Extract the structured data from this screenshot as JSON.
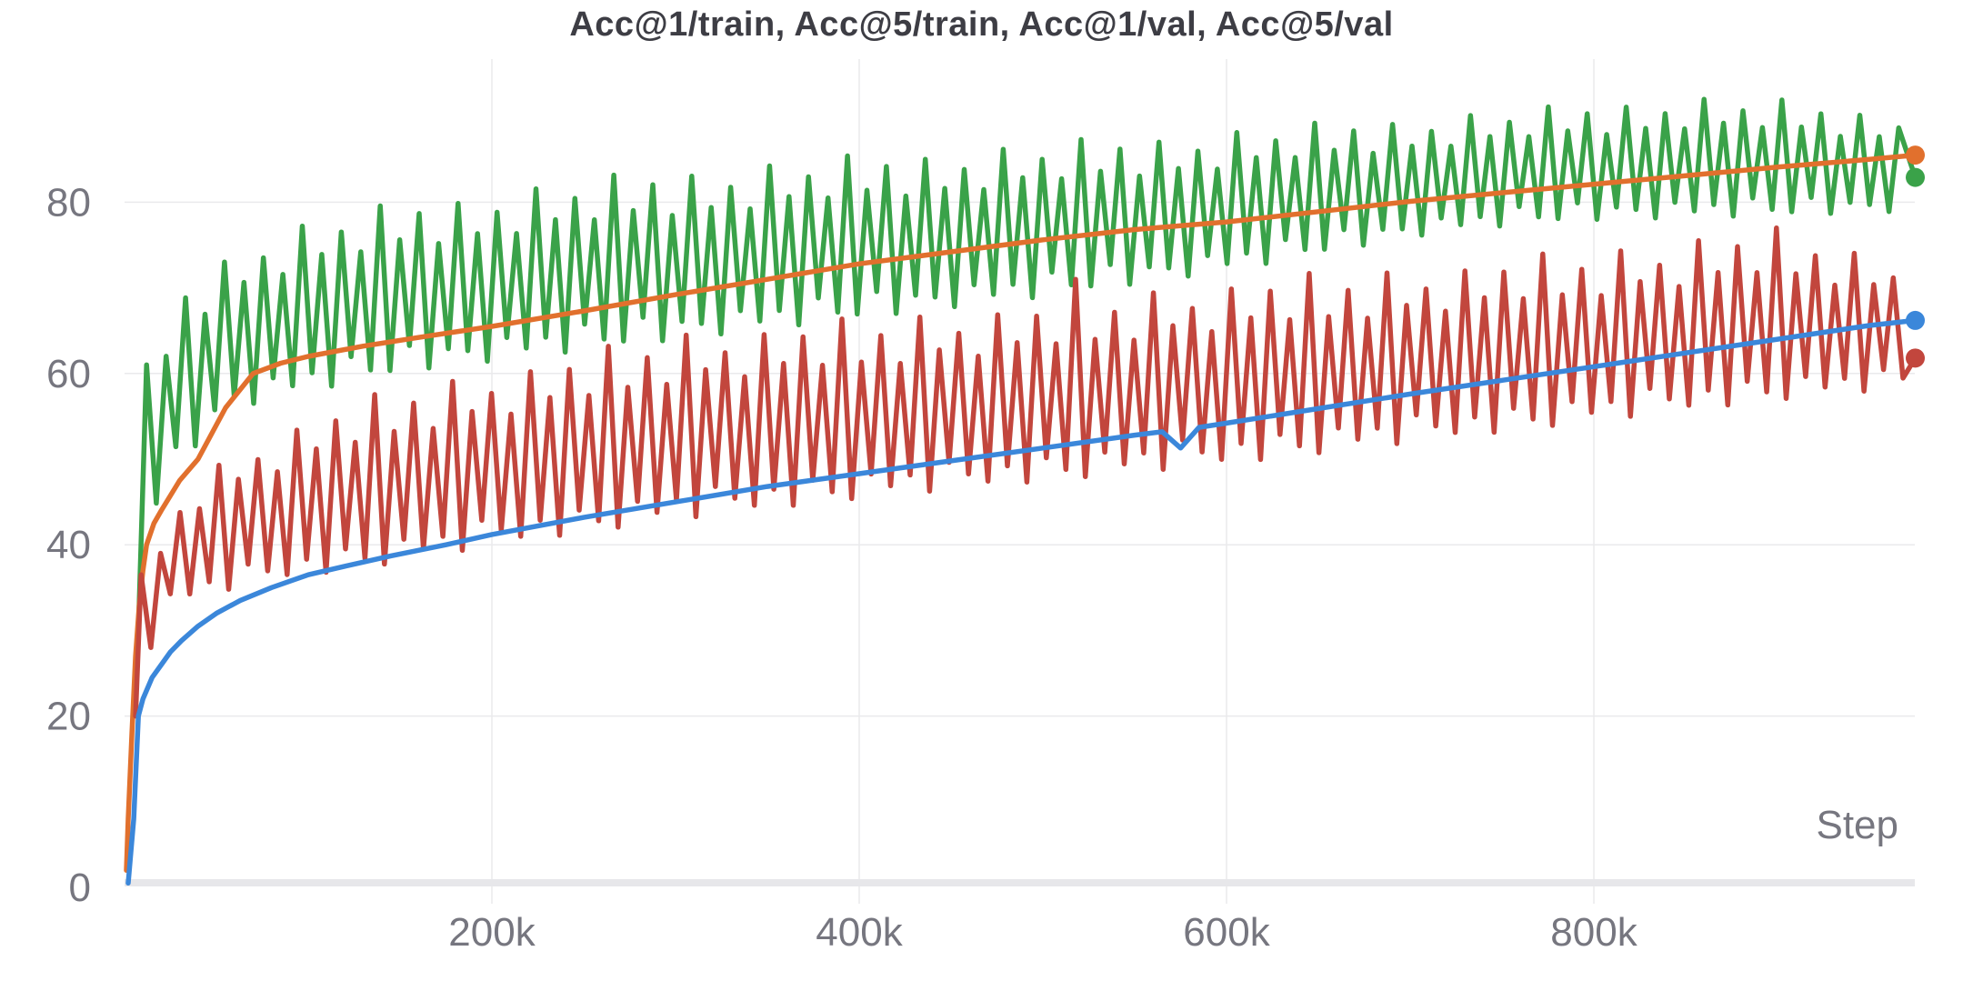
{
  "chart_data": {
    "type": "line",
    "title": "Acc@1/train, Acc@5/train, Acc@1/val, Acc@5/val",
    "xlabel": "Step",
    "x_unit": "steps",
    "x_range": [
      0,
      980000
    ],
    "ylim": [
      0,
      97
    ],
    "grid": true,
    "legend_position": "none",
    "x_ticks": [
      {
        "v": 200,
        "label": "200k"
      },
      {
        "v": 400,
        "label": "400k"
      },
      {
        "v": 600,
        "label": "600k"
      },
      {
        "v": 800,
        "label": "800k"
      }
    ],
    "y_ticks": [
      {
        "v": 0,
        "label": "0"
      },
      {
        "v": 20,
        "label": "20"
      },
      {
        "v": 40,
        "label": "40"
      },
      {
        "v": 60,
        "label": "60"
      },
      {
        "v": 80,
        "label": "80"
      }
    ],
    "colors": {
      "acc5_val": "#e1702d",
      "acc1_val": "#3b87da",
      "acc5_train": "#3aa249",
      "acc1_train": "#c2463d",
      "grid": "#eaeaec",
      "baseline": "#e7e7ea",
      "tick_text": "#76767f",
      "title_text": "#3d3d44"
    },
    "series": [
      {
        "name": "Acc@5/train",
        "color": "#3aa249",
        "kind": "jagged",
        "note": "noisy per-step training top-5 accuracy, oscillates between envelopes",
        "start_k": 7.5,
        "start_v": 30,
        "first_peak_k": 12,
        "half_period_k": 5.3,
        "upper_x": [
          10,
          30,
          60,
          100,
          150,
          200,
          300,
          400,
          500,
          600,
          700,
          800,
          850,
          900,
          975
        ],
        "upper_y": [
          60,
          70,
          75,
          78,
          80,
          81.5,
          84,
          85.5,
          87,
          88.5,
          90,
          91.5,
          92.5,
          92,
          90
        ],
        "lower_x": [
          7.5,
          10,
          20,
          40,
          60,
          100,
          160,
          200,
          300,
          400,
          500,
          600,
          650,
          700,
          760,
          800,
          900,
          975
        ],
        "lower_y": [
          30,
          40,
          46,
          52,
          56,
          58,
          60.5,
          61.5,
          64,
          66.5,
          69,
          72,
          74,
          76,
          77.5,
          78,
          78.5,
          79
        ],
        "peak_pattern": [
          1,
          0.6,
          0.85,
          0.5,
          0.9,
          0.55,
          0.75,
          0.5,
          0.95,
          0.6,
          0.8,
          0.55
        ],
        "trough_pattern": [
          0.95,
          0.7,
          1,
          0.8,
          0.85,
          1,
          0.75,
          0.9,
          0.8,
          1,
          0.7,
          0.9
        ],
        "spikes": [],
        "end_step_k": 975,
        "end_value": 82.9,
        "end_dot": true
      },
      {
        "name": "Acc@5/val",
        "color": "#e1702d",
        "kind": "smooth",
        "x_k": [
          1,
          2,
          4,
          6,
          8,
          10,
          12,
          16,
          20,
          30,
          40,
          55,
          70,
          85,
          100,
          130,
          160,
          200,
          250,
          300,
          350,
          400,
          450,
          500,
          550,
          600,
          650,
          700,
          750,
          800,
          850,
          900,
          950,
          975
        ],
        "y": [
          2,
          8,
          18,
          27,
          33,
          37,
          40,
          42.5,
          44,
          47.5,
          50,
          56,
          60,
          61.2,
          62,
          63.2,
          64.2,
          65.5,
          67.3,
          69.2,
          71,
          72.8,
          74.2,
          75.6,
          76.8,
          77.7,
          78.9,
          80.1,
          81.1,
          82.1,
          83.1,
          84.1,
          85,
          85.5
        ],
        "end_step_k": 975,
        "end_value": 85.5,
        "end_dot": true
      },
      {
        "name": "Acc@1/train",
        "color": "#c2463d",
        "kind": "jagged",
        "note": "noisy per-step training top-1 accuracy, oscillates between envelopes",
        "start_k": 6,
        "start_v": 20,
        "first_peak_k": 9,
        "half_period_k": 5.3,
        "upper_x": [
          8,
          20,
          40,
          60,
          100,
          150,
          200,
          250,
          300,
          400,
          500,
          600,
          700,
          800,
          900,
          975
        ],
        "upper_y": [
          36,
          42,
          48,
          51,
          55,
          58.5,
          60.5,
          62.5,
          65,
          66.5,
          68.5,
          71,
          72.5,
          74.5,
          77,
          72.5
        ],
        "lower_x": [
          6,
          10,
          25,
          60,
          100,
          150,
          200,
          300,
          400,
          500,
          600,
          700,
          800,
          900,
          975
        ],
        "lower_y": [
          20,
          26,
          33,
          35,
          36.5,
          38,
          40,
          43,
          45.5,
          47.5,
          49.5,
          52,
          54.5,
          57,
          58.5
        ],
        "peak_pattern": [
          1,
          0.55,
          0.8,
          0.5,
          0.95,
          0.6,
          0.75,
          0.5,
          0.9,
          0.6,
          0.85,
          0.55
        ],
        "trough_pattern": [
          1,
          0.75,
          0.9,
          0.8,
          1,
          0.7,
          0.85,
          0.95,
          0.8,
          1,
          0.75,
          0.9
        ],
        "spikes": [
          [
            520,
            71
          ],
          [
            855,
            75.5
          ],
          [
            914,
            79.7
          ]
        ],
        "end_step_k": 975,
        "end_value": 61.8,
        "end_dot": true
      },
      {
        "name": "Acc@1/val",
        "color": "#3b87da",
        "kind": "smooth",
        "x_k": [
          2,
          5,
          7.5,
          10,
          15,
          20,
          25,
          31,
          40,
          50,
          63,
          80,
          100,
          120,
          145,
          175,
          200,
          250,
          300,
          350,
          400,
          450,
          500,
          550,
          565,
          575,
          585,
          600,
          650,
          700,
          750,
          800,
          850,
          900,
          950,
          975
        ],
        "y": [
          0.5,
          8,
          20,
          22,
          24.5,
          26,
          27.5,
          28.8,
          30.5,
          32,
          33.5,
          35,
          36.5,
          37.5,
          38.7,
          40,
          41.2,
          43.2,
          45,
          46.8,
          48.3,
          49.8,
          51.3,
          52.8,
          53.2,
          51.3,
          53.7,
          54.2,
          55.9,
          57.6,
          59.2,
          60.8,
          62.4,
          64,
          65.6,
          66.2
        ],
        "end_step_k": 975,
        "end_value": 66.2,
        "end_dot": true
      }
    ],
    "end_values_summary": {
      "Acc@5/val": 85.5,
      "Acc@5/train": 82.9,
      "Acc@1/val": 66.2,
      "Acc@1/train": 61.8
    }
  }
}
